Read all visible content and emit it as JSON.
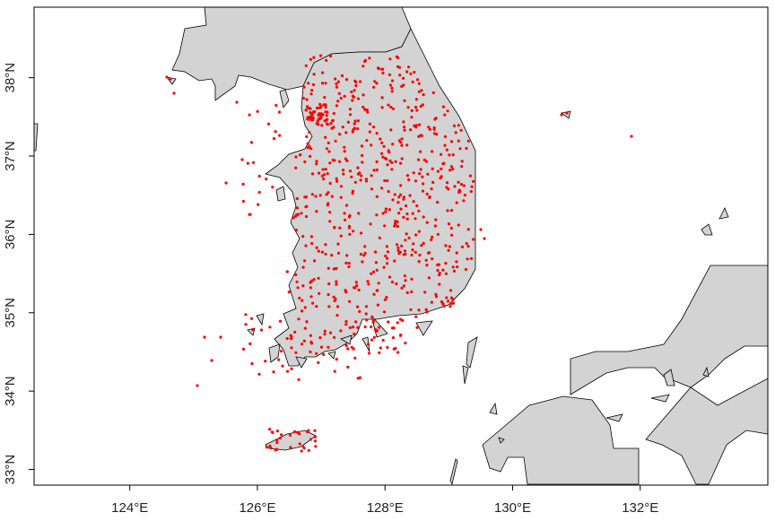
{
  "map": {
    "projection": "lon-lat",
    "lon_range": [
      122.5,
      134.0
    ],
    "lat_range": [
      32.8,
      38.9
    ],
    "x_ticks": [
      {
        "value": 124,
        "label": "124°E"
      },
      {
        "value": 126,
        "label": "126°E"
      },
      {
        "value": 128,
        "label": "128°E"
      },
      {
        "value": 130,
        "label": "130°E"
      },
      {
        "value": 132,
        "label": "132°E"
      }
    ],
    "y_ticks": [
      {
        "value": 33,
        "label": "33°N"
      },
      {
        "value": 34,
        "label": "34°N"
      },
      {
        "value": 35,
        "label": "35°N"
      },
      {
        "value": 36,
        "label": "36°N"
      },
      {
        "value": 37,
        "label": "37°N"
      },
      {
        "value": 38,
        "label": "38°N"
      }
    ],
    "colors": {
      "land": "#d3d3d3",
      "coast": "#000000",
      "points": "#ff0000",
      "background": "#ffffff"
    }
  }
}
